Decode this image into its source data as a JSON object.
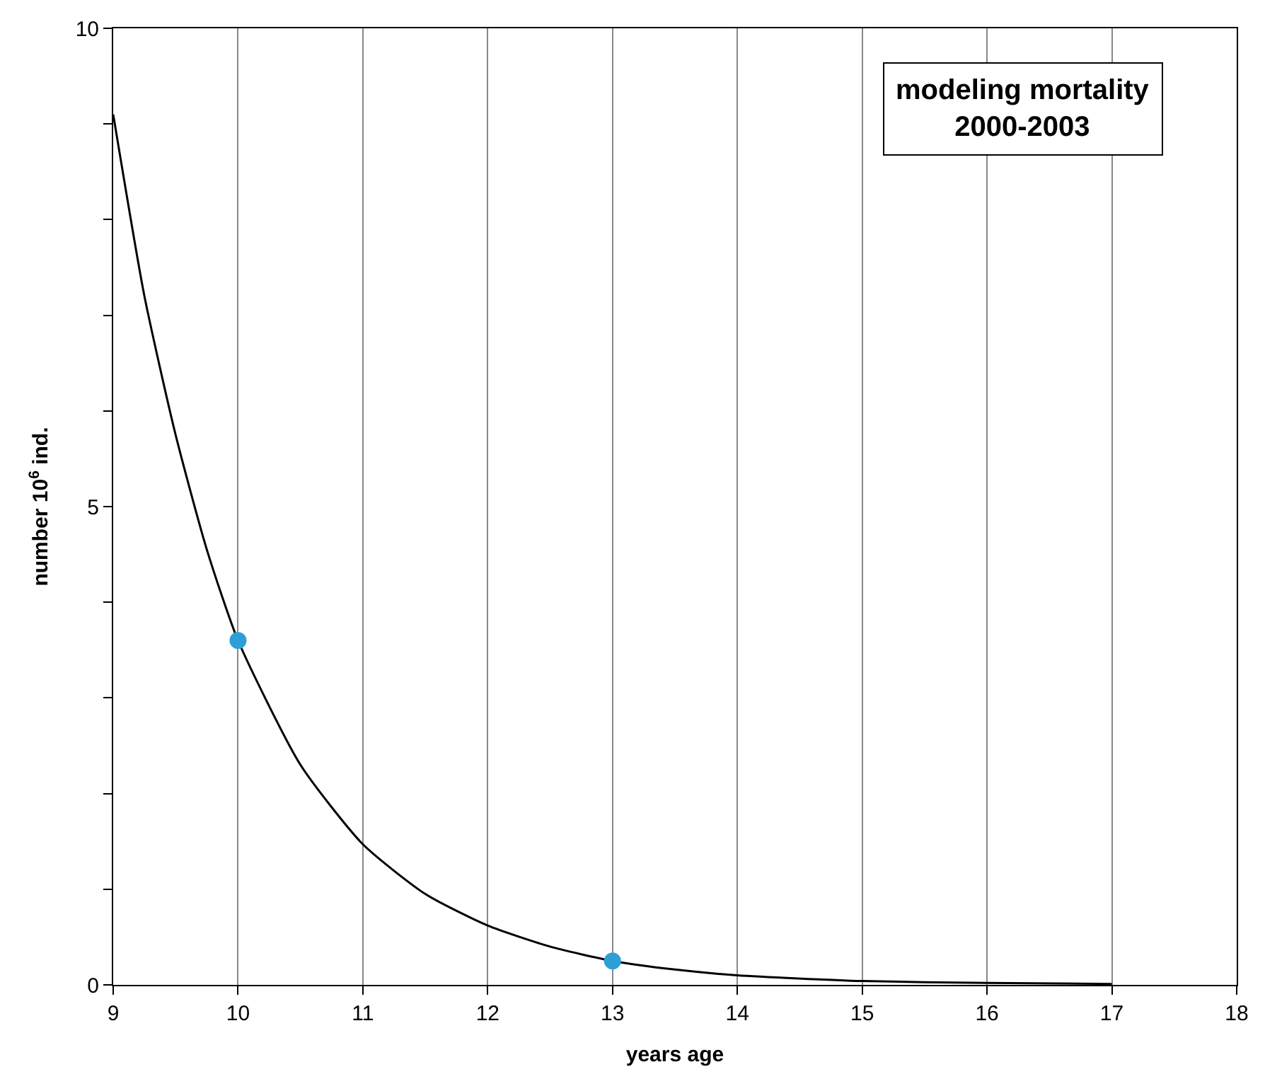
{
  "chart_data": {
    "type": "line",
    "xlabel": "years age",
    "ylabel": "number 10$^{6}$ ind.",
    "xlim": [
      9,
      18
    ],
    "xticks": [
      9,
      10,
      11,
      12,
      13,
      14,
      15,
      16,
      17,
      18
    ],
    "ylim": [
      0,
      10
    ],
    "yticks": [
      0,
      {
        "value": 1,
        "label": null
      },
      {
        "value": 2,
        "label": null
      },
      {
        "value": 3,
        "label": null
      },
      {
        "value": 4,
        "label": null
      },
      5,
      {
        "value": 6,
        "label": null
      },
      {
        "value": 7,
        "label": null
      },
      {
        "value": 8,
        "label": null
      },
      {
        "value": 9,
        "label": null
      },
      10
    ],
    "grid": "x",
    "annotations": [
      "modeling mortality\n2000-2003"
    ],
    "series": [
      {
        "color": "#000000",
        "marker": "none",
        "line_style": "solid",
        "x": [
          9,
          9.25,
          9.5,
          9.75,
          10,
          10.5,
          11,
          11.5,
          12,
          12.5,
          13,
          13.5,
          14,
          15,
          16,
          17
        ],
        "values": [
          9.1,
          7.2,
          5.75,
          4.55,
          3.6,
          2.3,
          1.47,
          0.95,
          0.62,
          0.4,
          0.25,
          0.16,
          0.1,
          0.04,
          0.02,
          0.01
        ]
      },
      {
        "type": "scatter",
        "color": "#2e9fd6",
        "marker": "circle",
        "x": [
          10,
          13
        ],
        "values": [
          3.6,
          0.25
        ]
      }
    ]
  }
}
